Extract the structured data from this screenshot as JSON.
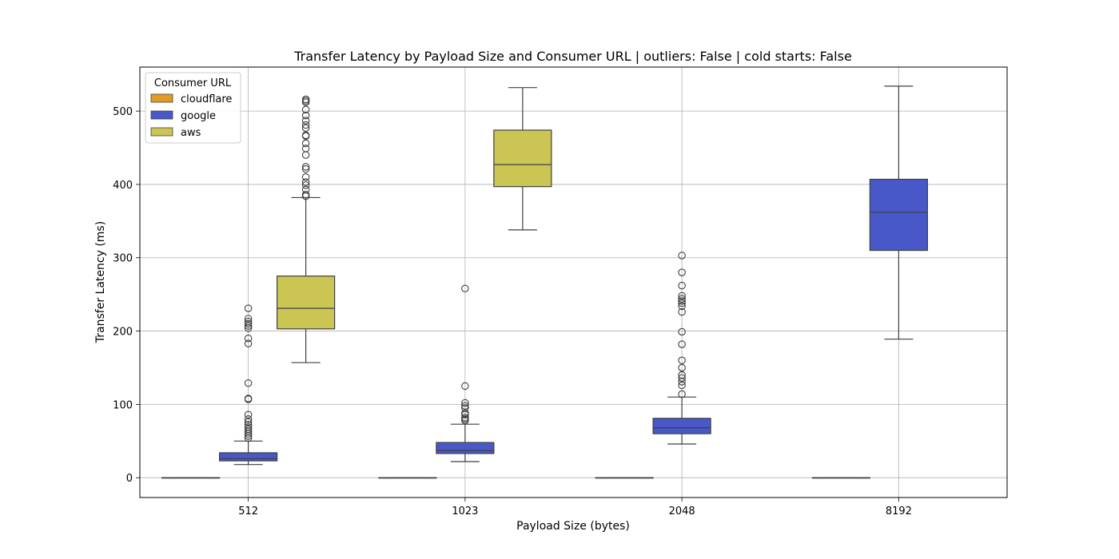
{
  "chart_data": {
    "type": "box",
    "title": "Transfer Latency by Payload Size and Consumer URL | outliers: False | cold starts: False",
    "xlabel": "Payload Size (bytes)",
    "ylabel": "Transfer Latency (ms)",
    "categories": [
      "512",
      "1023",
      "2048",
      "8192"
    ],
    "ylim": [
      -27,
      560
    ],
    "yticks": [
      0,
      100,
      200,
      300,
      400,
      500
    ],
    "grid": true,
    "legend": {
      "title": "Consumer URL",
      "position": "top-left"
    },
    "series": [
      {
        "name": "cloudflare",
        "color": "#e09c24",
        "boxes": [
          {
            "category": "512",
            "whisker_low": 0,
            "q1": 0,
            "median": 0,
            "q3": 0,
            "whisker_high": 0,
            "outliers": []
          },
          {
            "category": "1023",
            "whisker_low": 0,
            "q1": 0,
            "median": 0,
            "q3": 0,
            "whisker_high": 0,
            "outliers": []
          },
          {
            "category": "2048",
            "whisker_low": 0,
            "q1": 0,
            "median": 0,
            "q3": 0,
            "whisker_high": 0,
            "outliers": []
          },
          {
            "category": "8192",
            "whisker_low": 0,
            "q1": 0,
            "median": 0,
            "q3": 0,
            "whisker_high": 0,
            "outliers": []
          }
        ]
      },
      {
        "name": "google",
        "color": "#4958c8",
        "boxes": [
          {
            "category": "512",
            "whisker_low": 18,
            "q1": 23,
            "median": 26,
            "q3": 34,
            "whisker_high": 50,
            "outliers": [
              54,
              57,
              60,
              63,
              66,
              69,
              72,
              76,
              80,
              86,
              107,
              108,
              129,
              183,
              190,
              204,
              207,
              210,
              213,
              217,
              231
            ]
          },
          {
            "category": "1023",
            "whisker_low": 22,
            "q1": 33,
            "median": 37,
            "q3": 48,
            "whisker_high": 73,
            "outliers": [
              78,
              80,
              82,
              86,
              88,
              95,
              98,
              102,
              125,
              258
            ]
          },
          {
            "category": "2048",
            "whisker_low": 46,
            "q1": 60,
            "median": 68,
            "q3": 81,
            "whisker_high": 110,
            "outliers": [
              114,
              126,
              131,
              136,
              140,
              150,
              160,
              182,
              199,
              226,
              234,
              238,
              241,
              244,
              248,
              262,
              280,
              303
            ]
          },
          {
            "category": "8192",
            "whisker_low": 189,
            "q1": 310,
            "median": 362,
            "q3": 407,
            "whisker_high": 534,
            "outliers": []
          }
        ]
      },
      {
        "name": "aws",
        "color": "#cbc554",
        "boxes": [
          {
            "category": "512",
            "whisker_low": 157,
            "q1": 203,
            "median": 231,
            "q3": 275,
            "whisker_high": 382,
            "outliers": [
              384,
              386,
              393,
              399,
              403,
              410,
              421,
              424,
              440,
              449,
              456,
              466,
              467,
              477,
              481,
              487,
              494,
              502,
              512,
              514,
              516
            ]
          },
          {
            "category": "1023",
            "whisker_low": 338,
            "q1": 397,
            "median": 427,
            "q3": 474,
            "whisker_high": 532,
            "outliers": []
          }
        ]
      }
    ]
  }
}
